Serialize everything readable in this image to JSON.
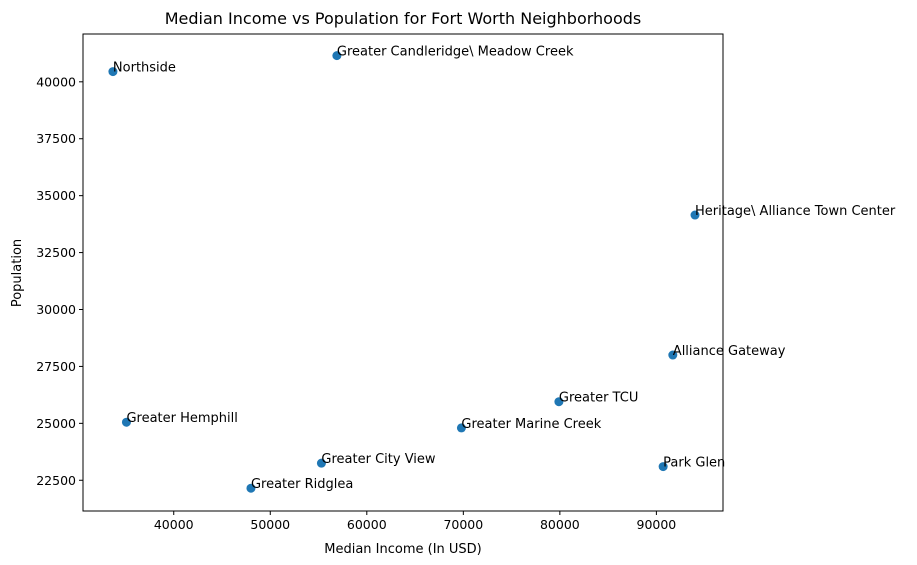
{
  "chart_data": {
    "type": "scatter",
    "title": "Median Income vs Population for Fort Worth Neighborhoods",
    "xlabel": "Median Income (In USD)",
    "ylabel": "Population",
    "xlim": [
      30600,
      96900
    ],
    "ylim": [
      21150,
      42100
    ],
    "xticks": [
      40000,
      50000,
      60000,
      70000,
      80000,
      90000
    ],
    "yticks": [
      22500,
      25000,
      27500,
      30000,
      32500,
      35000,
      37500,
      40000
    ],
    "grid": false,
    "legend": "none",
    "marker_color": "#1f77b4",
    "points": [
      {
        "label": "Northside",
        "x": 33700,
        "y": 40450
      },
      {
        "label": "Greater Candleridge\\ Meadow Creek",
        "x": 56900,
        "y": 41150
      },
      {
        "label": "Heritage\\ Alliance Town Center",
        "x": 94000,
        "y": 34150
      },
      {
        "label": "Alliance Gateway",
        "x": 91700,
        "y": 28000
      },
      {
        "label": "Greater TCU",
        "x": 79900,
        "y": 25950
      },
      {
        "label": "Greater Hemphill",
        "x": 35100,
        "y": 25050
      },
      {
        "label": "Greater Marine Creek",
        "x": 69800,
        "y": 24800
      },
      {
        "label": "Greater City View",
        "x": 55300,
        "y": 23250
      },
      {
        "label": "Park Glen",
        "x": 90700,
        "y": 23100
      },
      {
        "label": "Greater Ridglea",
        "x": 48000,
        "y": 22150
      }
    ]
  }
}
